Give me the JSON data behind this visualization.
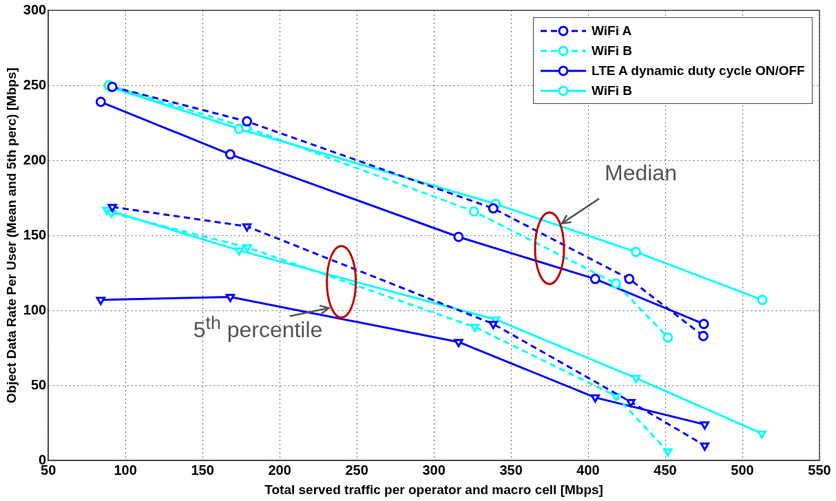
{
  "chart_data": {
    "type": "line",
    "xlabel": "Total served traffic per operator and macro cell [Mbps]",
    "ylabel": "Object Data Rate Per User (Mean and 5th perc) [Mbps]",
    "xlim": [
      50,
      550
    ],
    "xticks": [
      50,
      100,
      150,
      200,
      250,
      300,
      350,
      400,
      450,
      500,
      550
    ],
    "ylim": [
      0,
      300
    ],
    "yticks": [
      0,
      50,
      100,
      150,
      200,
      250,
      300
    ],
    "grid": true,
    "legend": "top right",
    "series": [
      {
        "name": "WiFi A",
        "color": "#0000ff",
        "line_style": "dashed",
        "marker": "circle",
        "x": [
          91.5,
          178.8,
          338.5,
          426.7,
          474.7
        ],
        "values": [
          249,
          226,
          168,
          121,
          83
        ]
      },
      {
        "name": "WiFi B",
        "color": "#00ffff",
        "line_style": "dashed",
        "marker": "circle",
        "x": [
          89.2,
          178.3,
          326,
          418,
          451.7
        ],
        "values": [
          250,
          222,
          166,
          118,
          82
        ]
      },
      {
        "name": "LTE A dynamic duty cycle ON/OFF",
        "color": "#0000ff",
        "line_style": "solid",
        "marker": "circle",
        "x": [
          84,
          168,
          316,
          404.6,
          475
        ],
        "values": [
          239,
          204,
          149,
          121,
          91
        ]
      },
      {
        "name": "WiFi B",
        "color": "#00ffff",
        "line_style": "solid",
        "marker": "circle",
        "x": [
          90,
          173.7,
          340,
          431,
          513
        ],
        "values": [
          249,
          221,
          171,
          139,
          107
        ]
      },
      {
        "color": "#0000ff",
        "line_style": "dashed",
        "marker": "triangle",
        "x": [
          91.5,
          178.8,
          338.5,
          427.7,
          475.6
        ],
        "values": [
          169,
          156,
          91,
          39,
          10
        ]
      },
      {
        "color": "#00ffff",
        "line_style": "dashed",
        "marker": "triangle",
        "x": [
          91,
          179,
          326.5,
          418,
          451.7
        ],
        "values": [
          165,
          142,
          89,
          43,
          6
        ]
      },
      {
        "color": "#0000ff",
        "line_style": "solid",
        "marker": "triangle",
        "x": [
          84,
          168,
          316,
          404.6,
          475.6
        ],
        "values": [
          107,
          109,
          79,
          42,
          24
        ]
      },
      {
        "color": "#00ffff",
        "line_style": "solid",
        "marker": "triangle",
        "x": [
          88,
          173.7,
          340,
          431,
          512.6
        ],
        "values": [
          167,
          140,
          94,
          55,
          18
        ]
      }
    ],
    "annotations": [
      {
        "text": "Median",
        "x": 383,
        "y": 158
      },
      "5$^{th}$ percentile"
    ]
  }
}
